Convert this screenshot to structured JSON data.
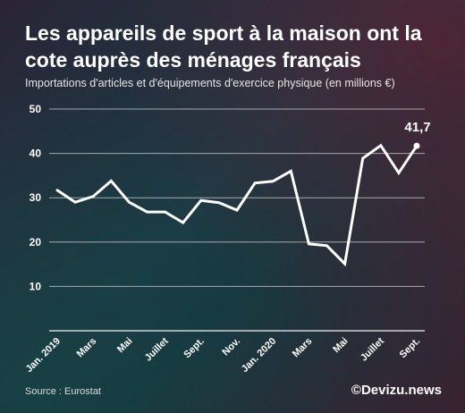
{
  "chart_data": {
    "type": "line",
    "title": "Les appareils de sport à la maison ont la cote auprès des ménages français",
    "subtitle": "Importations d'articles et d'équipements d'exercice physique (en millions €)",
    "x_tick_labels": [
      "Jan. 2019",
      "Mars",
      "Mai",
      "Juillet",
      "Sept.",
      "Nov.",
      "Jan. 2020",
      "Mars",
      "Mai",
      "Juillet",
      "Sept."
    ],
    "x": [
      "2019-01",
      "2019-02",
      "2019-03",
      "2019-04",
      "2019-05",
      "2019-06",
      "2019-07",
      "2019-08",
      "2019-09",
      "2019-10",
      "2019-11",
      "2019-12",
      "2020-01",
      "2020-02",
      "2020-03",
      "2020-04",
      "2020-05",
      "2020-06",
      "2020-07",
      "2020-08",
      "2020-09"
    ],
    "values": [
      31.7,
      29.0,
      30.3,
      33.8,
      29.0,
      26.8,
      26.8,
      24.4,
      29.4,
      28.9,
      27.2,
      33.3,
      33.7,
      36.0,
      19.6,
      19.2,
      15.1,
      38.9,
      41.8,
      35.6,
      41.7
    ],
    "yticks": [
      10,
      20,
      30,
      40,
      50
    ],
    "ylim": [
      0,
      50
    ],
    "last_value_label": "41,7",
    "grid": true
  },
  "footer": {
    "source": "Source : Eurostat",
    "brand": "©Devizu.news"
  },
  "colors": {
    "line": "#ffffff",
    "grid": "#cfd3d6"
  }
}
